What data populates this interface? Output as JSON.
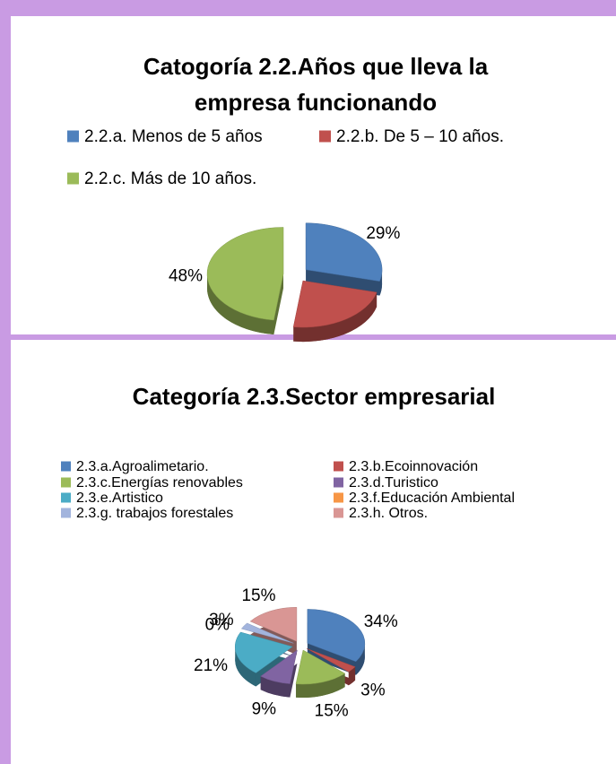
{
  "chart_data": [
    {
      "type": "pie",
      "title": "Catogoría 2.2.Años que lleva la empresa funcionando",
      "categories": [
        "2.2.a. Menos de 5 años",
        "2.2.b. De 5 – 10 años.",
        "2.2.c. Más de 10 años."
      ],
      "values": [
        29,
        23,
        48
      ],
      "value_labels": [
        "29%",
        null,
        "48%"
      ],
      "colors": [
        "#4f81bd",
        "#c0504d",
        "#9bbb59"
      ],
      "legend": "top"
    },
    {
      "type": "pie",
      "title": "Categoría 2.3.Sector empresarial",
      "categories": [
        "2.3.a.Agroalimetario.",
        "2.3.b.Ecoinnovación",
        "2.3.c.Energías renovables",
        "2.3.d.Turistico",
        "2.3.e.Artistico",
        "2.3.f.Educación Ambiental",
        "2.3.g. trabajos forestales",
        "2.3.h. Otros."
      ],
      "values": [
        34,
        3,
        15,
        9,
        21,
        0,
        3,
        15
      ],
      "value_labels": [
        "34%",
        "3%",
        "15%",
        "9%",
        "21%",
        "0%",
        "3%",
        "15%"
      ],
      "colors": [
        "#4f81bd",
        "#c0504d",
        "#9bbb59",
        "#8064a2",
        "#4bacc6",
        "#f79646",
        "#a2b4dd",
        "#d99694"
      ],
      "legend": "top"
    }
  ]
}
